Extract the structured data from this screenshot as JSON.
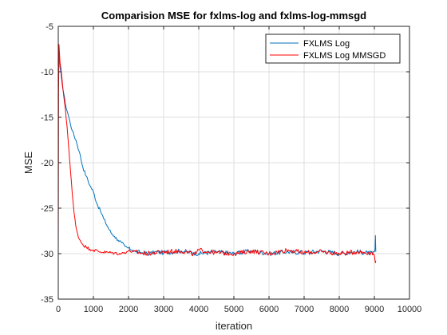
{
  "chart_data": {
    "type": "line",
    "title": "Comparision MSE for fxlms-log and fxlms-log-mmsgd",
    "xlabel": "iteration",
    "ylabel": "MSE",
    "xlim": [
      0,
      10000
    ],
    "ylim": [
      -35,
      -5
    ],
    "xticks": [
      0,
      1000,
      2000,
      3000,
      4000,
      5000,
      6000,
      7000,
      8000,
      9000,
      10000
    ],
    "yticks": [
      -35,
      -30,
      -25,
      -20,
      -15,
      -10,
      -5
    ],
    "grid": true,
    "legend_position": "top-right",
    "series": [
      {
        "name": "FXLMS Log",
        "color": "#0072bd",
        "x": [
          0,
          50,
          100,
          200,
          300,
          400,
          500,
          600,
          700,
          800,
          900,
          1000,
          1100,
          1200,
          1300,
          1400,
          1500,
          1600,
          1700,
          1800,
          1900,
          2000,
          2100,
          2200,
          2400,
          2600,
          2800,
          3000,
          3500,
          4000,
          4500,
          5000,
          5500,
          6000,
          6500,
          7000,
          7500,
          8000,
          8500,
          8800,
          8950,
          9000,
          9020,
          9030,
          9040
        ],
        "y": [
          -8,
          -9.5,
          -11,
          -13.5,
          -15,
          -16.5,
          -17.5,
          -18.8,
          -20.5,
          -21.5,
          -22.5,
          -23.2,
          -24.5,
          -25.3,
          -26.2,
          -27,
          -27.7,
          -28.1,
          -28.5,
          -28.8,
          -29.2,
          -29.4,
          -29.6,
          -29.8,
          -29.9,
          -30,
          -29.8,
          -29.9,
          -29.7,
          -30,
          -29.8,
          -30,
          -29.7,
          -30,
          -29.8,
          -29.9,
          -29.7,
          -30,
          -29.8,
          -29.9,
          -30,
          -29.8,
          -29.5,
          -28,
          -29.8
        ]
      },
      {
        "name": "FXLMS Log MMSGD",
        "color": "#ff0000",
        "x": [
          0,
          10,
          20,
          50,
          100,
          150,
          200,
          250,
          300,
          350,
          400,
          450,
          500,
          550,
          600,
          700,
          800,
          900,
          1000,
          1200,
          1500,
          1800,
          2000,
          2500,
          3000,
          3500,
          3900,
          4000,
          4500,
          5000,
          5500,
          6000,
          6500,
          7000,
          7500,
          8000,
          8500,
          8900,
          9000,
          9030,
          9040
        ],
        "y": [
          -30,
          -12,
          -7,
          -9,
          -10.5,
          -12.5,
          -14,
          -16,
          -18.5,
          -21,
          -23.5,
          -25.5,
          -27,
          -27.8,
          -28.4,
          -29,
          -29.3,
          -29.5,
          -29.6,
          -29.8,
          -29.9,
          -30,
          -29.7,
          -30,
          -29.8,
          -29.7,
          -30.1,
          -29.6,
          -29.9,
          -30,
          -29.7,
          -30,
          -29.6,
          -29.9,
          -29.8,
          -30,
          -29.8,
          -29.9,
          -30.2,
          -31,
          -30.8
        ]
      }
    ]
  }
}
